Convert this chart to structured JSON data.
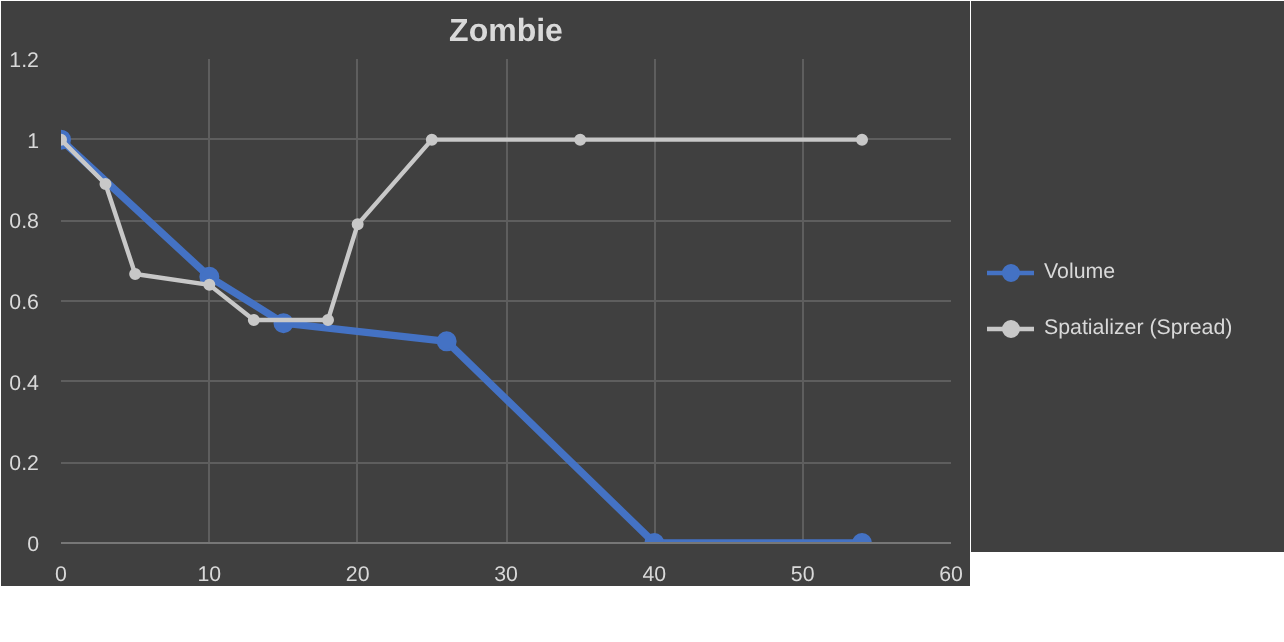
{
  "chart_data": {
    "type": "line",
    "title": "Zombie",
    "xlim": [
      0,
      60
    ],
    "xticks": [
      0,
      10,
      20,
      30,
      40,
      50,
      60
    ],
    "ylim": [
      0,
      1.2
    ],
    "yticks": [
      0,
      0.2,
      0.4,
      0.6,
      0.8,
      1,
      1.2
    ],
    "grid": true,
    "legend": "right",
    "marker": "circle",
    "series": [
      {
        "name": "Volume",
        "color": "#4472c4",
        "x": [
          0,
          10,
          15,
          26,
          40,
          54
        ],
        "values": [
          1,
          0.66,
          0.545,
          0.5,
          0,
          0
        ]
      },
      {
        "name": "Spatializer (Spread)",
        "color": "#c8c8c8",
        "x": [
          0,
          3,
          5,
          10,
          13,
          18,
          20,
          25,
          35,
          54
        ],
        "values": [
          1,
          0.89,
          0.667,
          0.64,
          0.553,
          0.553,
          0.79,
          1,
          1,
          1
        ]
      }
    ]
  }
}
